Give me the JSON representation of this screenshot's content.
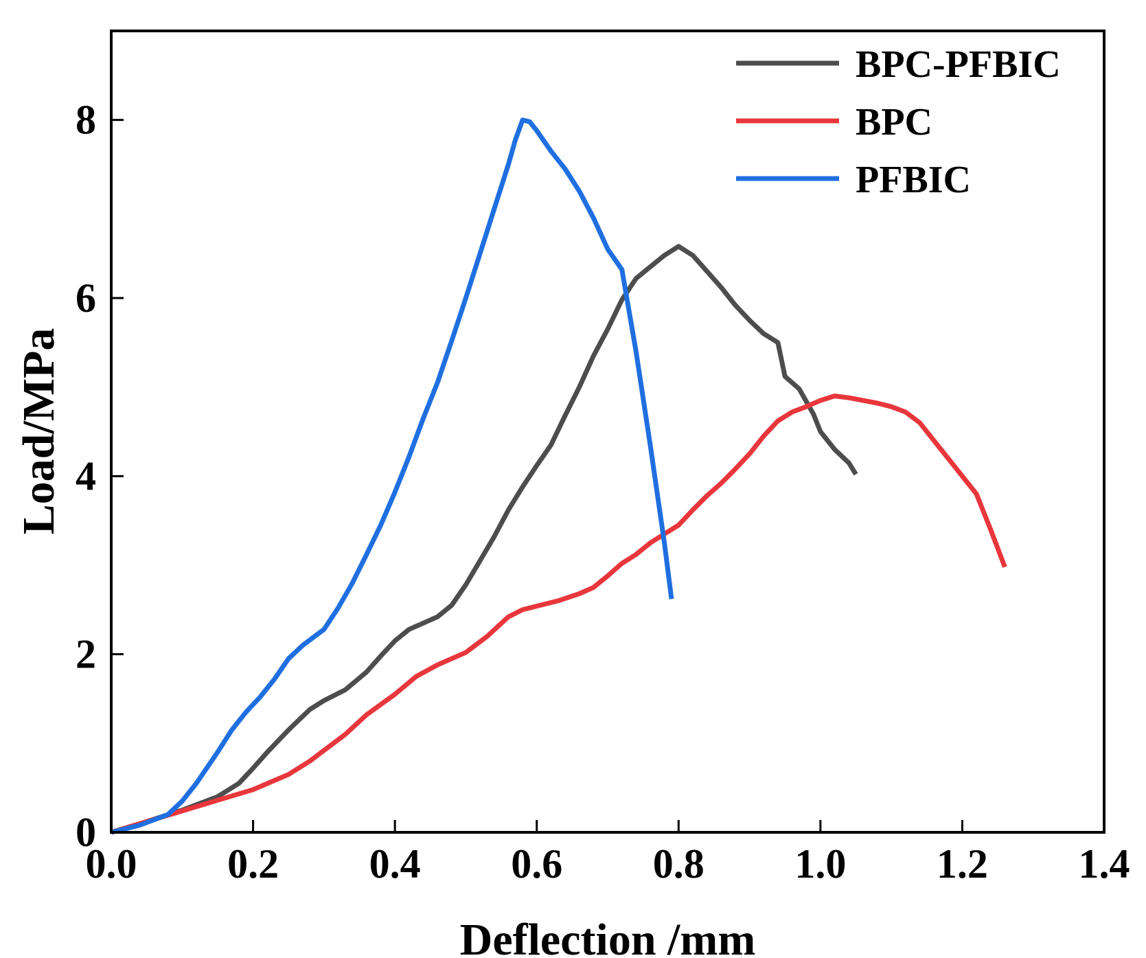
{
  "chart_data": {
    "type": "line",
    "title": "",
    "xlabel": "Deflection /mm",
    "ylabel": "Load/MPa",
    "xlim": [
      0.0,
      1.4
    ],
    "ylim": [
      0,
      9
    ],
    "xticks": [
      0.0,
      0.2,
      0.4,
      0.6,
      0.8,
      1.0,
      1.2,
      1.4
    ],
    "xtick_labels": [
      "0.0",
      "0.2",
      "0.4",
      "0.6",
      "0.8",
      "1.0",
      "1.2",
      "1.4"
    ],
    "yticks": [
      0,
      2,
      4,
      6,
      8
    ],
    "ytick_labels": [
      "0",
      "2",
      "4",
      "6",
      "8"
    ],
    "grid": false,
    "legend_position": "top-right",
    "series": [
      {
        "name": "BPC-PFBIC",
        "color": "#4d4d4d",
        "x": [
          0.0,
          0.05,
          0.1,
          0.15,
          0.18,
          0.2,
          0.22,
          0.25,
          0.28,
          0.3,
          0.33,
          0.36,
          0.38,
          0.4,
          0.42,
          0.44,
          0.46,
          0.48,
          0.5,
          0.52,
          0.54,
          0.56,
          0.58,
          0.6,
          0.62,
          0.64,
          0.66,
          0.68,
          0.7,
          0.72,
          0.74,
          0.76,
          0.78,
          0.8,
          0.82,
          0.84,
          0.86,
          0.88,
          0.9,
          0.92,
          0.94,
          0.95,
          0.97,
          0.99,
          1.0,
          1.02,
          1.04,
          1.05
        ],
        "values": [
          0.0,
          0.12,
          0.25,
          0.4,
          0.55,
          0.72,
          0.9,
          1.15,
          1.38,
          1.48,
          1.6,
          1.8,
          1.98,
          2.15,
          2.28,
          2.35,
          2.42,
          2.55,
          2.78,
          3.05,
          3.32,
          3.62,
          3.88,
          4.12,
          4.35,
          4.68,
          5.0,
          5.35,
          5.65,
          5.98,
          6.22,
          6.35,
          6.48,
          6.58,
          6.48,
          6.3,
          6.12,
          5.92,
          5.75,
          5.6,
          5.5,
          5.12,
          4.98,
          4.7,
          4.5,
          4.3,
          4.15,
          4.02
        ]
      },
      {
        "name": "BPC",
        "color": "#e8373c",
        "x": [
          0.0,
          0.05,
          0.1,
          0.15,
          0.2,
          0.25,
          0.28,
          0.3,
          0.33,
          0.36,
          0.4,
          0.43,
          0.46,
          0.5,
          0.53,
          0.56,
          0.58,
          0.6,
          0.63,
          0.66,
          0.68,
          0.7,
          0.72,
          0.74,
          0.76,
          0.78,
          0.8,
          0.82,
          0.84,
          0.86,
          0.88,
          0.9,
          0.92,
          0.94,
          0.96,
          0.98,
          1.0,
          1.02,
          1.04,
          1.06,
          1.08,
          1.1,
          1.12,
          1.14,
          1.16,
          1.18,
          1.2,
          1.22,
          1.24,
          1.26
        ],
        "values": [
          0.0,
          0.12,
          0.24,
          0.36,
          0.48,
          0.65,
          0.8,
          0.92,
          1.1,
          1.32,
          1.55,
          1.75,
          1.88,
          2.02,
          2.2,
          2.42,
          2.5,
          2.54,
          2.6,
          2.68,
          2.75,
          2.88,
          3.02,
          3.12,
          3.25,
          3.35,
          3.45,
          3.62,
          3.78,
          3.92,
          4.08,
          4.25,
          4.45,
          4.62,
          4.72,
          4.78,
          4.85,
          4.9,
          4.88,
          4.85,
          4.82,
          4.78,
          4.72,
          4.6,
          4.4,
          4.2,
          4.0,
          3.8,
          3.4,
          2.98
        ]
      },
      {
        "name": "PFBIC",
        "color": "#1f6fe0",
        "x": [
          0.0,
          0.04,
          0.08,
          0.1,
          0.12,
          0.15,
          0.17,
          0.19,
          0.21,
          0.23,
          0.25,
          0.27,
          0.3,
          0.32,
          0.34,
          0.36,
          0.38,
          0.4,
          0.42,
          0.44,
          0.46,
          0.48,
          0.5,
          0.52,
          0.54,
          0.56,
          0.57,
          0.58,
          0.59,
          0.6,
          0.62,
          0.64,
          0.66,
          0.68,
          0.7,
          0.72,
          0.74,
          0.76,
          0.78,
          0.79
        ],
        "values": [
          0.0,
          0.08,
          0.2,
          0.35,
          0.55,
          0.9,
          1.15,
          1.35,
          1.52,
          1.72,
          1.95,
          2.1,
          2.28,
          2.52,
          2.8,
          3.12,
          3.45,
          3.82,
          4.22,
          4.65,
          5.05,
          5.52,
          6.0,
          6.5,
          7.0,
          7.5,
          7.78,
          8.0,
          7.98,
          7.88,
          7.65,
          7.45,
          7.2,
          6.9,
          6.55,
          6.32,
          5.4,
          4.35,
          3.25,
          2.62
        ]
      }
    ]
  }
}
